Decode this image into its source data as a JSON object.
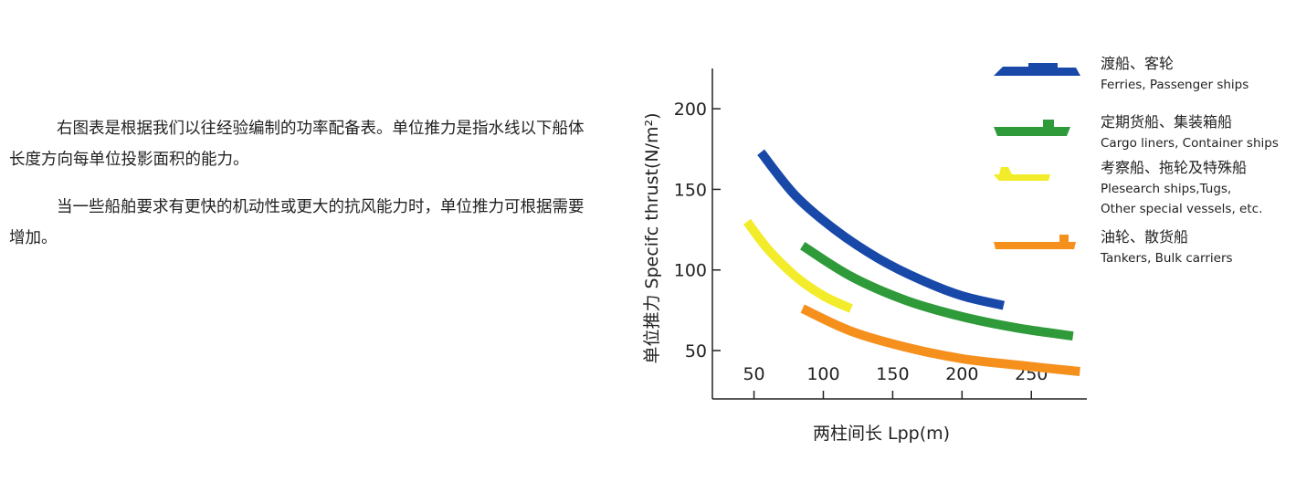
{
  "text": {
    "paragraph_1": "右图表是根据我们以往经验编制的功率配备表。单位推力是指水线以下船体长度方向每单位投影面积的能力。",
    "paragraph_2": "当一些船舶要求有更快的机动性或更大的抗风能力时，单位推力可根据需要增加。"
  },
  "chart_data": {
    "type": "line",
    "xlabel": "两柱间长 Lpp(m)",
    "ylabel": "单位推力 Specifc thrust(N/m²)",
    "xlim": [
      20,
      290
    ],
    "ylim": [
      20,
      225
    ],
    "x_ticks": [
      50,
      100,
      150,
      200,
      250
    ],
    "y_ticks": [
      50,
      100,
      150,
      200
    ],
    "grid": false,
    "legend_position": "right",
    "series": [
      {
        "name_cn": "渡船、客轮",
        "name_en": "Ferries, Passenger ships",
        "color": "#1848a8",
        "icon": "ferry-ship-icon",
        "x": [
          55,
          80,
          110,
          140,
          170,
          200,
          230
        ],
        "y": [
          173,
          146,
          124,
          107,
          94,
          84,
          78
        ]
      },
      {
        "name_cn": "定期货船、集装箱船",
        "name_en": "Cargo liners, Container ships",
        "color": "#2f9a3a",
        "icon": "container-ship-icon",
        "x": [
          85,
          120,
          160,
          200,
          240,
          280
        ],
        "y": [
          115,
          96,
          81,
          71,
          64,
          59
        ]
      },
      {
        "name_cn": "考察船、拖轮及特殊船",
        "name_en": "Plesearch ships,Tugs, Other special vessels, etc.",
        "color": "#f2ec2a",
        "icon": "tug-ship-icon",
        "x": [
          45,
          60,
          80,
          100,
          120
        ],
        "y": [
          130,
          113,
          96,
          84,
          76
        ]
      },
      {
        "name_cn": "油轮、散货船",
        "name_en": "Tankers, Bulk carriers",
        "color": "#f6901d",
        "icon": "tanker-ship-icon",
        "x": [
          85,
          120,
          160,
          200,
          240,
          285
        ],
        "y": [
          76,
          62,
          52,
          45,
          41,
          37
        ]
      }
    ]
  }
}
